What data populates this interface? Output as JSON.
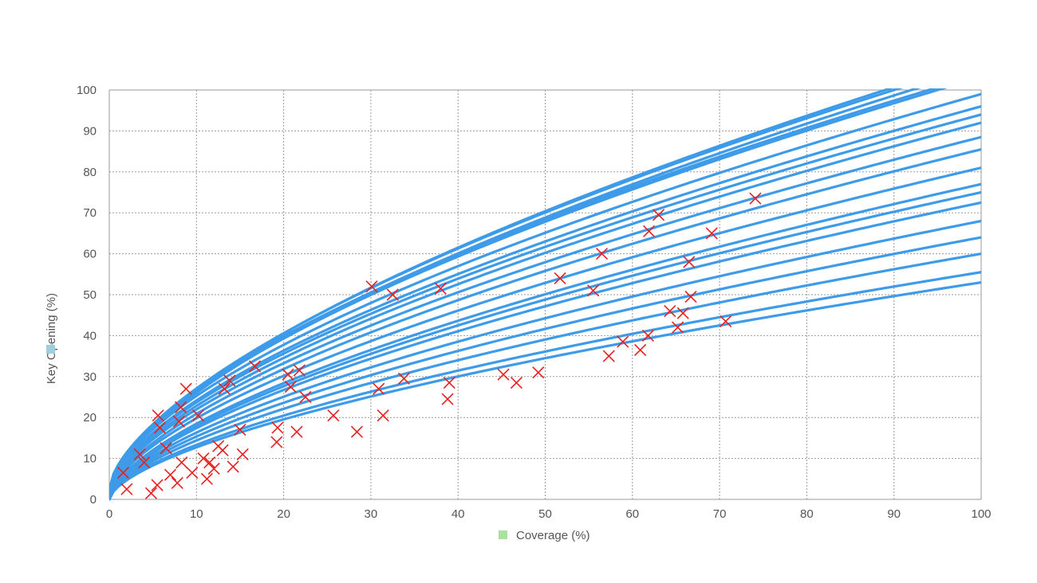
{
  "chart_data": {
    "type": "scatter",
    "title": "",
    "xlabel": "Coverage (%)",
    "ylabel": "Key Opening (%)",
    "xlim": [
      0,
      100
    ],
    "ylim": [
      0,
      100
    ],
    "xticks": [
      0,
      10,
      20,
      30,
      40,
      50,
      60,
      70,
      80,
      90,
      100
    ],
    "yticks": [
      0,
      10,
      20,
      30,
      40,
      50,
      60,
      70,
      80,
      90,
      100
    ],
    "grid": true,
    "colors": {
      "curves": "#3d9be9",
      "markers": "#e8201f",
      "xlabel_swatch": "#a9e29f",
      "ylabel_swatch": "#9dcfdc",
      "text": "#555555",
      "grid": "#9a9a9a"
    },
    "scatter_points": [
      {
        "x": 1.6,
        "y": 6.5
      },
      {
        "x": 2.0,
        "y": 2.5
      },
      {
        "x": 3.5,
        "y": 11.0
      },
      {
        "x": 4.0,
        "y": 9.0
      },
      {
        "x": 4.8,
        "y": 1.5
      },
      {
        "x": 5.5,
        "y": 3.5
      },
      {
        "x": 5.6,
        "y": 20.5
      },
      {
        "x": 5.8,
        "y": 17.5
      },
      {
        "x": 6.5,
        "y": 12.5
      },
      {
        "x": 7.0,
        "y": 6.0
      },
      {
        "x": 7.8,
        "y": 4.0
      },
      {
        "x": 8.0,
        "y": 19.0
      },
      {
        "x": 8.2,
        "y": 22.5
      },
      {
        "x": 8.3,
        "y": 9.0
      },
      {
        "x": 8.8,
        "y": 27.0
      },
      {
        "x": 9.5,
        "y": 6.5
      },
      {
        "x": 10.2,
        "y": 20.5
      },
      {
        "x": 10.8,
        "y": 10.0
      },
      {
        "x": 11.2,
        "y": 5.0
      },
      {
        "x": 11.5,
        "y": 9.0
      },
      {
        "x": 12.0,
        "y": 7.5
      },
      {
        "x": 12.5,
        "y": 13.0
      },
      {
        "x": 13.0,
        "y": 12.0
      },
      {
        "x": 13.2,
        "y": 27.0
      },
      {
        "x": 13.8,
        "y": 29.0
      },
      {
        "x": 14.2,
        "y": 8.0
      },
      {
        "x": 15.0,
        "y": 17.0
      },
      {
        "x": 15.3,
        "y": 11.0
      },
      {
        "x": 16.7,
        "y": 32.5
      },
      {
        "x": 19.2,
        "y": 14.0
      },
      {
        "x": 19.3,
        "y": 17.5
      },
      {
        "x": 20.5,
        "y": 30.5
      },
      {
        "x": 20.8,
        "y": 27.5
      },
      {
        "x": 21.5,
        "y": 16.5
      },
      {
        "x": 21.8,
        "y": 31.5
      },
      {
        "x": 22.5,
        "y": 25.0
      },
      {
        "x": 25.7,
        "y": 20.5
      },
      {
        "x": 28.4,
        "y": 16.5
      },
      {
        "x": 30.1,
        "y": 52.0
      },
      {
        "x": 30.9,
        "y": 27.0
      },
      {
        "x": 31.4,
        "y": 20.5
      },
      {
        "x": 32.5,
        "y": 50.0
      },
      {
        "x": 33.8,
        "y": 29.5
      },
      {
        "x": 38.0,
        "y": 51.5
      },
      {
        "x": 38.8,
        "y": 24.5
      },
      {
        "x": 39.0,
        "y": 28.5
      },
      {
        "x": 45.2,
        "y": 30.5
      },
      {
        "x": 46.7,
        "y": 28.5
      },
      {
        "x": 49.2,
        "y": 31.0
      },
      {
        "x": 51.7,
        "y": 54.0
      },
      {
        "x": 55.5,
        "y": 51.0
      },
      {
        "x": 56.5,
        "y": 60.0
      },
      {
        "x": 57.3,
        "y": 35.0
      },
      {
        "x": 58.9,
        "y": 38.5
      },
      {
        "x": 60.9,
        "y": 36.5
      },
      {
        "x": 61.8,
        "y": 40.0
      },
      {
        "x": 61.9,
        "y": 65.5
      },
      {
        "x": 63.0,
        "y": 69.5
      },
      {
        "x": 64.3,
        "y": 46.0
      },
      {
        "x": 65.2,
        "y": 42.0
      },
      {
        "x": 65.8,
        "y": 45.5
      },
      {
        "x": 66.5,
        "y": 58.0
      },
      {
        "x": 66.7,
        "y": 49.5
      },
      {
        "x": 69.1,
        "y": 65.0
      },
      {
        "x": 70.7,
        "y": 43.5
      },
      {
        "x": 74.1,
        "y": 73.5
      }
    ],
    "fit_curves": [
      {
        "y_at_100": 53.0,
        "y_at_0": 0.0
      },
      {
        "y_at_100": 55.5,
        "y_at_0": 0.0
      },
      {
        "y_at_100": 60.0,
        "y_at_0": 0.0
      },
      {
        "y_at_100": 64.0,
        "y_at_0": 0.0
      },
      {
        "y_at_100": 68.0,
        "y_at_0": 0.0
      },
      {
        "y_at_100": 72.5,
        "y_at_0": 0.0
      },
      {
        "y_at_100": 75.0,
        "y_at_0": 0.0
      },
      {
        "y_at_100": 77.0,
        "y_at_0": 0.0
      },
      {
        "y_at_100": 81.0,
        "y_at_0": 0.5
      },
      {
        "y_at_100": 85.5,
        "y_at_0": 0.5
      },
      {
        "y_at_100": 88.5,
        "y_at_0": 1.0
      },
      {
        "y_at_100": 92.0,
        "y_at_0": 1.0
      },
      {
        "y_at_100": 94.0,
        "y_at_0": 1.5
      },
      {
        "y_at_100": 96.0,
        "y_at_0": 1.5
      },
      {
        "y_at_100": 99.0,
        "y_at_0": 2.0
      },
      {
        "y_at_95": 100.0,
        "y_at_0": 2.0
      },
      {
        "y_at_94": 100.0,
        "y_at_0": 2.5
      },
      {
        "y_at_92": 100.0,
        "y_at_0": 1.0
      },
      {
        "y_at_90": 100.0,
        "y_at_0": 2.0
      },
      {
        "y_at_89": 100.0,
        "y_at_0": 1.5
      }
    ]
  }
}
